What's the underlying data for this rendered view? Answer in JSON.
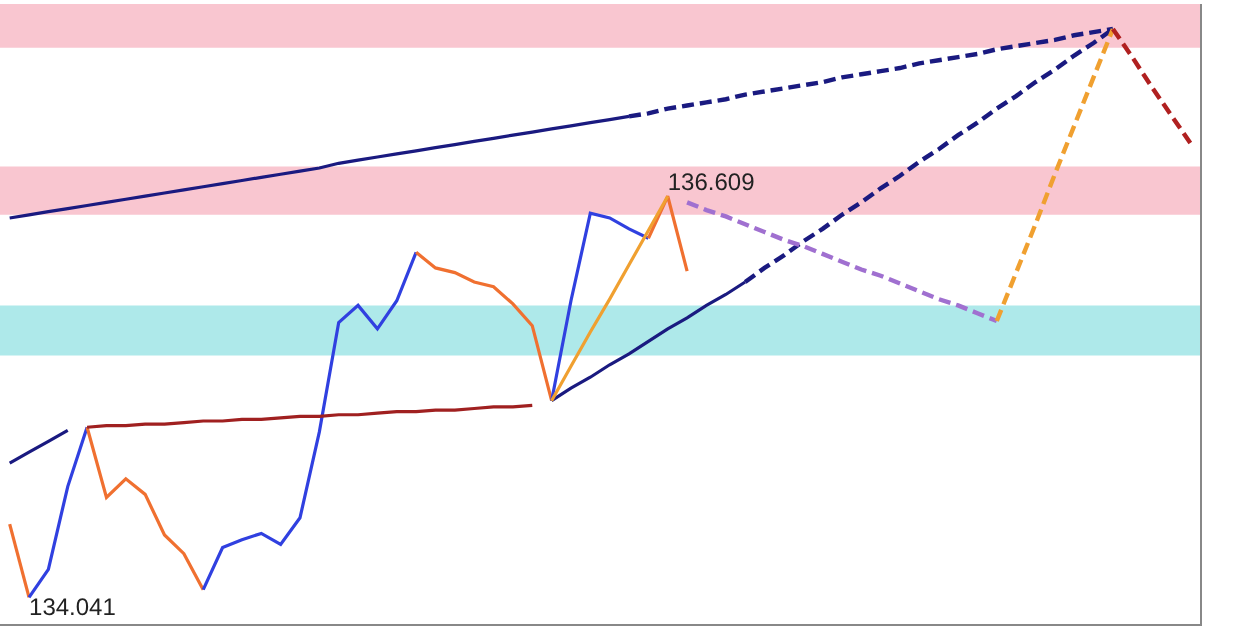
{
  "chart_data": {
    "type": "line",
    "categories": [
      null,
      null,
      null,
      null,
      null,
      null,
      null,
      null,
      null,
      null,
      null,
      null,
      null,
      null,
      null,
      null,
      null,
      null,
      null,
      null,
      null,
      null,
      null,
      null,
      null,
      null,
      null,
      null,
      null,
      null,
      null,
      null,
      null,
      null,
      null,
      null,
      null,
      null,
      null,
      null,
      null,
      null,
      null,
      null,
      null,
      null,
      null,
      null,
      null,
      null,
      null,
      null,
      null,
      null,
      null,
      null,
      null,
      null,
      null,
      null,
      null,
      null
    ],
    "ylim": [
      133.87,
      137.84
    ],
    "tick_labels": false,
    "grid": false,
    "marker": "none",
    "bands": [
      {
        "axis": "y",
        "from": 137.56,
        "to": 137.84,
        "color": "#f9c6d0"
      },
      {
        "axis": "y",
        "from": 136.49,
        "to": 136.8,
        "color": "#f9c6d0"
      },
      {
        "axis": "y",
        "from": 135.59,
        "to": 135.91,
        "color": "#aee9ea"
      }
    ],
    "series": [
      {
        "color": "#f07030",
        "values": [
          134.51,
          134.041,
          null,
          null,
          null,
          null,
          null,
          null,
          null,
          null,
          null,
          null,
          null,
          null,
          null,
          null,
          null,
          null,
          null,
          null,
          null,
          null,
          null,
          null,
          null,
          null,
          null,
          null,
          null,
          null,
          null,
          null,
          null,
          null,
          null,
          null,
          null,
          null,
          null,
          null,
          null,
          null,
          null,
          null,
          null,
          null,
          null,
          null,
          null,
          null,
          null,
          null,
          null,
          null,
          null,
          null,
          null,
          null,
          null,
          null,
          null,
          null
        ],
        "value_labels": [
          null,
          "134.041",
          null,
          null,
          null,
          null,
          null,
          null,
          null,
          null,
          null,
          null,
          null,
          null,
          null,
          null,
          null,
          null,
          null,
          null,
          null,
          null,
          null,
          null,
          null,
          null,
          null,
          null,
          null,
          null,
          null,
          null,
          null,
          null,
          null,
          null,
          null,
          null,
          null,
          null,
          null,
          null,
          null,
          null,
          null,
          null,
          null,
          null,
          null,
          null,
          null,
          null,
          null,
          null,
          null,
          null,
          null,
          null,
          null,
          null,
          null,
          null
        ]
      },
      {
        "color": "#3040e0",
        "values": [
          null,
          134.041,
          134.22,
          134.75,
          135.13,
          null,
          null,
          null,
          null,
          null,
          null,
          null,
          null,
          null,
          null,
          null,
          null,
          null,
          null,
          null,
          null,
          null,
          null,
          null,
          null,
          null,
          null,
          null,
          null,
          null,
          null,
          null,
          null,
          null,
          null,
          null,
          null,
          null,
          null,
          null,
          null,
          null,
          null,
          null,
          null,
          null,
          null,
          null,
          null,
          null,
          null,
          null,
          null,
          null,
          null,
          null,
          null,
          null,
          null,
          null,
          null,
          null
        ]
      },
      {
        "color": "#f07030",
        "values": [
          null,
          null,
          null,
          null,
          135.13,
          134.68,
          134.8,
          134.7,
          134.44,
          134.32,
          134.09,
          null,
          null,
          null,
          null,
          null,
          null,
          null,
          null,
          null,
          null,
          null,
          null,
          null,
          null,
          null,
          null,
          null,
          null,
          null,
          null,
          null,
          null,
          null,
          null,
          null,
          null,
          null,
          null,
          null,
          null,
          null,
          null,
          null,
          null,
          null,
          null,
          null,
          null,
          null,
          null,
          null,
          null,
          null,
          null,
          null,
          null,
          null,
          null,
          null,
          null,
          null
        ]
      },
      {
        "color": "#3040e0",
        "values": [
          null,
          null,
          null,
          null,
          null,
          null,
          null,
          null,
          null,
          null,
          134.09,
          134.36,
          134.41,
          134.45,
          134.38,
          134.55,
          135.1,
          135.8,
          135.91,
          135.76,
          135.94,
          136.25,
          null,
          null,
          null,
          null,
          null,
          null,
          null,
          null,
          null,
          null,
          null,
          null,
          null,
          null,
          null,
          null,
          null,
          null,
          null,
          null,
          null,
          null,
          null,
          null,
          null,
          null,
          null,
          null,
          null,
          null,
          null,
          null,
          null,
          null,
          null,
          null,
          null,
          null,
          null,
          null
        ]
      },
      {
        "color": "#f07030",
        "values": [
          null,
          null,
          null,
          null,
          null,
          null,
          null,
          null,
          null,
          null,
          null,
          null,
          null,
          null,
          null,
          null,
          null,
          null,
          null,
          null,
          null,
          136.25,
          136.15,
          136.12,
          136.06,
          136.03,
          135.92,
          135.78,
          135.3,
          null,
          null,
          null,
          null,
          null,
          null,
          null,
          null,
          null,
          null,
          null,
          null,
          null,
          null,
          null,
          null,
          null,
          null,
          null,
          null,
          null,
          null,
          null,
          null,
          null,
          null,
          null,
          null,
          null,
          null,
          null,
          null,
          null
        ]
      },
      {
        "color": "#3040e0",
        "values": [
          null,
          null,
          null,
          null,
          null,
          null,
          null,
          null,
          null,
          null,
          null,
          null,
          null,
          null,
          null,
          null,
          null,
          null,
          null,
          null,
          null,
          null,
          null,
          null,
          null,
          null,
          null,
          null,
          135.3,
          135.94,
          136.5,
          136.47,
          136.4,
          136.34,
          null,
          null,
          null,
          null,
          null,
          null,
          null,
          null,
          null,
          null,
          null,
          null,
          null,
          null,
          null,
          null,
          null,
          null,
          null,
          null,
          null,
          null,
          null,
          null,
          null,
          null,
          null,
          null
        ]
      },
      {
        "color": "#f07030",
        "values": [
          null,
          null,
          null,
          null,
          null,
          null,
          null,
          null,
          null,
          null,
          null,
          null,
          null,
          null,
          null,
          null,
          null,
          null,
          null,
          null,
          null,
          null,
          null,
          null,
          null,
          null,
          null,
          null,
          null,
          null,
          null,
          null,
          null,
          136.34,
          136.609,
          136.13,
          null,
          null,
          null,
          null,
          null,
          null,
          null,
          null,
          null,
          null,
          null,
          null,
          null,
          null,
          null,
          null,
          null,
          null,
          null,
          null,
          null,
          null,
          null,
          null,
          null,
          null
        ],
        "value_labels": [
          null,
          null,
          null,
          null,
          null,
          null,
          null,
          null,
          null,
          null,
          null,
          null,
          null,
          null,
          null,
          null,
          null,
          null,
          null,
          null,
          null,
          null,
          null,
          null,
          null,
          null,
          null,
          null,
          null,
          null,
          null,
          null,
          null,
          null,
          "136.609",
          null,
          null,
          null,
          null,
          null,
          null,
          null,
          null,
          null,
          null,
          null,
          null,
          null,
          null,
          null,
          null,
          null,
          null,
          null,
          null,
          null,
          null,
          null,
          null,
          null,
          null,
          null
        ]
      },
      {
        "color": "#1a1a80",
        "values": [
          134.9,
          134.97,
          135.04,
          135.11,
          null,
          null,
          null,
          null,
          null,
          null,
          null,
          null,
          null,
          null,
          null,
          null,
          null,
          null,
          null,
          null,
          null,
          null,
          null,
          null,
          null,
          null,
          null,
          null,
          null,
          null,
          null,
          null,
          null,
          null,
          null,
          null,
          null,
          null,
          null,
          null,
          null,
          null,
          null,
          null,
          null,
          null,
          null,
          null,
          null,
          null,
          null,
          null,
          null,
          null,
          null,
          null,
          null,
          null,
          null,
          null,
          null,
          null
        ]
      },
      {
        "color": "#a02020",
        "values": [
          null,
          null,
          null,
          null,
          135.13,
          135.14,
          135.14,
          135.15,
          135.15,
          135.16,
          135.17,
          135.17,
          135.18,
          135.18,
          135.19,
          135.2,
          135.2,
          135.21,
          135.21,
          135.22,
          135.23,
          135.23,
          135.24,
          135.24,
          135.25,
          135.26,
          135.26,
          135.27,
          null,
          null,
          null,
          null,
          null,
          null,
          null,
          null,
          null,
          null,
          null,
          null,
          null,
          null,
          null,
          null,
          null,
          null,
          null,
          null,
          null,
          null,
          null,
          null,
          null,
          null,
          null,
          null,
          null,
          null,
          null,
          null,
          null,
          null
        ]
      },
      {
        "color": "#1a1a80",
        "values": [
          136.47,
          136.49,
          136.51,
          136.53,
          136.55,
          136.57,
          136.59,
          136.61,
          136.63,
          136.65,
          136.67,
          136.69,
          136.71,
          136.73,
          136.75,
          136.77,
          136.79,
          136.82,
          136.84,
          136.86,
          136.88,
          136.9,
          136.92,
          136.94,
          136.96,
          136.98,
          137.0,
          137.02,
          137.04,
          137.06,
          137.08,
          137.1,
          137.12,
          null,
          null,
          null,
          null,
          null,
          null,
          null,
          null,
          null,
          null,
          null,
          null,
          null,
          null,
          null,
          null,
          null,
          null,
          null,
          null,
          null,
          null,
          null,
          null,
          null,
          null,
          null,
          null,
          null
        ]
      },
      {
        "color": "#1a1a80",
        "line_style": "dashed",
        "values": [
          null,
          null,
          null,
          null,
          null,
          null,
          null,
          null,
          null,
          null,
          null,
          null,
          null,
          null,
          null,
          null,
          null,
          null,
          null,
          null,
          null,
          null,
          null,
          null,
          null,
          null,
          null,
          null,
          null,
          null,
          null,
          null,
          137.12,
          137.14,
          137.17,
          137.19,
          137.21,
          137.23,
          137.26,
          137.28,
          137.3,
          137.32,
          137.34,
          137.37,
          137.39,
          137.41,
          137.43,
          137.46,
          137.48,
          137.5,
          137.52,
          137.55,
          137.57,
          137.59,
          137.61,
          137.64,
          137.66,
          137.68,
          null,
          null,
          null,
          null
        ]
      },
      {
        "color": "#1a1a80",
        "values": [
          null,
          null,
          null,
          null,
          null,
          null,
          null,
          null,
          null,
          null,
          null,
          null,
          null,
          null,
          null,
          null,
          null,
          null,
          null,
          null,
          null,
          null,
          null,
          null,
          null,
          null,
          null,
          null,
          135.3,
          135.38,
          135.45,
          135.53,
          135.6,
          135.68,
          135.76,
          135.83,
          135.91,
          135.98,
          136.06,
          null,
          null,
          null,
          null,
          null,
          null,
          null,
          null,
          null,
          null,
          null,
          null,
          null,
          null,
          null,
          null,
          null,
          null,
          null,
          null,
          null,
          null,
          null
        ]
      },
      {
        "color": "#1a1a80",
        "line_style": "dashed",
        "values": [
          null,
          null,
          null,
          null,
          null,
          null,
          null,
          null,
          null,
          null,
          null,
          null,
          null,
          null,
          null,
          null,
          null,
          null,
          null,
          null,
          null,
          null,
          null,
          null,
          null,
          null,
          null,
          null,
          null,
          null,
          null,
          null,
          null,
          null,
          null,
          null,
          null,
          null,
          136.06,
          136.15,
          136.23,
          136.32,
          136.4,
          136.49,
          136.57,
          136.66,
          136.74,
          136.83,
          136.91,
          137.0,
          137.08,
          137.17,
          137.25,
          137.34,
          137.42,
          137.51,
          137.59,
          137.68,
          null,
          null,
          null,
          null
        ]
      },
      {
        "color": "#f0a030",
        "values": [
          null,
          null,
          null,
          null,
          null,
          null,
          null,
          null,
          null,
          null,
          null,
          null,
          null,
          null,
          null,
          null,
          null,
          null,
          null,
          null,
          null,
          null,
          null,
          null,
          null,
          null,
          null,
          null,
          135.3,
          135.52,
          135.74,
          135.95,
          136.17,
          136.39,
          136.609,
          null,
          null,
          null,
          null,
          null,
          null,
          null,
          null,
          null,
          null,
          null,
          null,
          null,
          null,
          null,
          null,
          null,
          null,
          null,
          null,
          null,
          null,
          null,
          null,
          null,
          null,
          null
        ]
      },
      {
        "color": "#a070d0",
        "line_style": "dashed",
        "values": [
          null,
          null,
          null,
          null,
          null,
          null,
          null,
          null,
          null,
          null,
          null,
          null,
          null,
          null,
          null,
          null,
          null,
          null,
          null,
          null,
          null,
          null,
          null,
          null,
          null,
          null,
          null,
          null,
          null,
          null,
          null,
          null,
          null,
          null,
          null,
          136.57,
          136.52,
          136.48,
          136.43,
          136.38,
          136.33,
          136.29,
          136.24,
          136.19,
          136.14,
          136.1,
          136.05,
          136.0,
          135.95,
          135.91,
          135.86,
          135.81,
          null,
          null,
          null,
          null,
          null,
          null,
          null,
          null,
          null,
          null
        ]
      },
      {
        "color": "#f0a030",
        "line_style": "dashed",
        "values": [
          null,
          null,
          null,
          null,
          null,
          null,
          null,
          null,
          null,
          null,
          null,
          null,
          null,
          null,
          null,
          null,
          null,
          null,
          null,
          null,
          null,
          null,
          null,
          null,
          null,
          null,
          null,
          null,
          null,
          null,
          null,
          null,
          null,
          null,
          null,
          null,
          null,
          null,
          null,
          null,
          null,
          null,
          null,
          null,
          null,
          null,
          null,
          null,
          null,
          null,
          null,
          135.81,
          136.12,
          136.43,
          136.75,
          137.06,
          137.37,
          137.68,
          null,
          null,
          null,
          null
        ]
      },
      {
        "color": "#b02020",
        "line_style": "dashed",
        "values": [
          null,
          null,
          null,
          null,
          null,
          null,
          null,
          null,
          null,
          null,
          null,
          null,
          null,
          null,
          null,
          null,
          null,
          null,
          null,
          null,
          null,
          null,
          null,
          null,
          null,
          null,
          null,
          null,
          null,
          null,
          null,
          null,
          null,
          null,
          null,
          null,
          null,
          null,
          null,
          null,
          null,
          null,
          null,
          null,
          null,
          null,
          null,
          null,
          null,
          null,
          null,
          null,
          null,
          null,
          null,
          null,
          null,
          137.68,
          137.5,
          137.31,
          137.13,
          136.95
        ]
      }
    ]
  }
}
